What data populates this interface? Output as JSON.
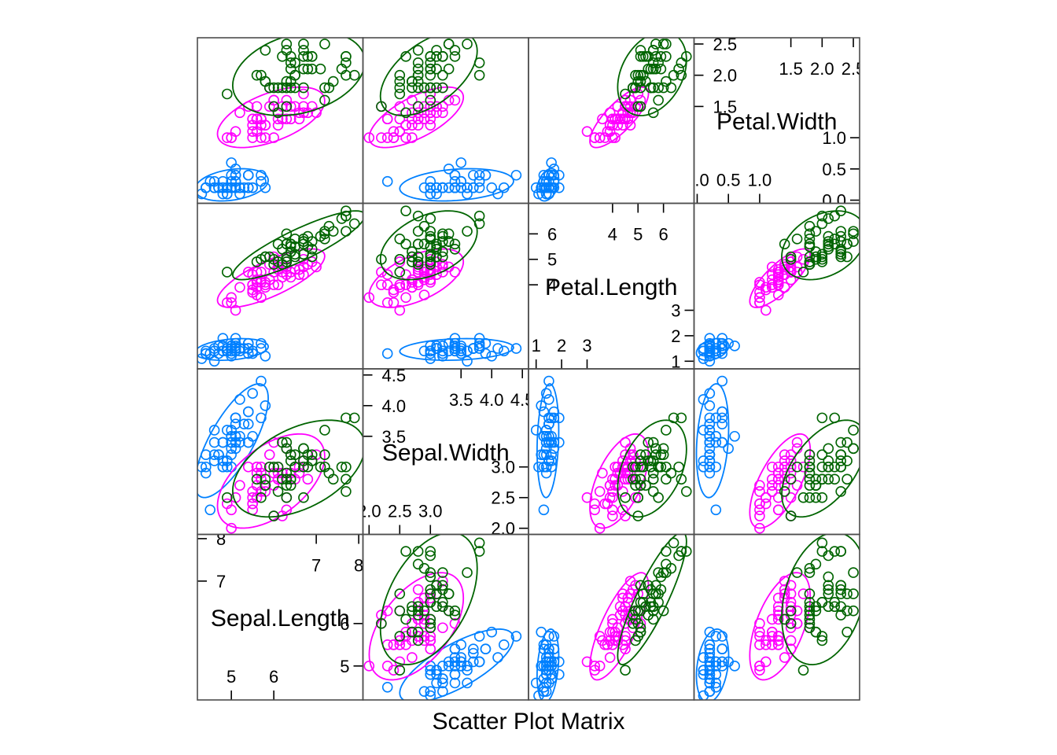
{
  "chart_data": {
    "type": "scatter",
    "title": "",
    "xlabel": "Scatter Plot Matrix",
    "ylabel": "",
    "variables": [
      "Sepal.Length",
      "Sepal.Width",
      "Petal.Length",
      "Petal.Width"
    ],
    "ranges": {
      "Sepal.Length": [
        4.2,
        8.1
      ],
      "Sepal.Width": [
        1.9,
        4.6
      ],
      "Petal.Length": [
        0.7,
        7.2
      ],
      "Petal.Width": [
        -0.05,
        2.6
      ]
    },
    "diagonal_ticks": {
      "Sepal.Length": {
        "low": [
          "5",
          "6"
        ],
        "high": [
          "7",
          "8"
        ]
      },
      "Sepal.Width": {
        "low": [
          "2.0",
          "2.5",
          "3.0"
        ],
        "high": [
          "3.5",
          "4.0",
          "4.5"
        ]
      },
      "Petal.Length": {
        "low": [
          "1",
          "2",
          "3"
        ],
        "high": [
          "4",
          "5",
          "6"
        ]
      },
      "Petal.Width": {
        "low": [
          "0.0",
          "0.5",
          "1.0"
        ],
        "high": [
          "1.5",
          "2.0",
          "2.5"
        ]
      }
    },
    "ellipses": true,
    "grid": false,
    "legend": "none",
    "series": [
      {
        "color": "#0080ff",
        "points": [
          [
            5.1,
            3.5,
            1.4,
            0.2
          ],
          [
            4.9,
            3.0,
            1.4,
            0.2
          ],
          [
            4.7,
            3.2,
            1.3,
            0.2
          ],
          [
            4.6,
            3.1,
            1.5,
            0.2
          ],
          [
            5.0,
            3.6,
            1.4,
            0.2
          ],
          [
            5.4,
            3.9,
            1.7,
            0.4
          ],
          [
            4.6,
            3.4,
            1.4,
            0.3
          ],
          [
            5.0,
            3.4,
            1.5,
            0.2
          ],
          [
            4.4,
            2.9,
            1.4,
            0.2
          ],
          [
            4.9,
            3.1,
            1.5,
            0.1
          ],
          [
            5.4,
            3.7,
            1.5,
            0.2
          ],
          [
            4.8,
            3.4,
            1.6,
            0.2
          ],
          [
            4.8,
            3.0,
            1.4,
            0.1
          ],
          [
            4.3,
            3.0,
            1.1,
            0.1
          ],
          [
            5.8,
            4.0,
            1.2,
            0.2
          ],
          [
            5.7,
            4.4,
            1.5,
            0.4
          ],
          [
            5.4,
            3.9,
            1.3,
            0.4
          ],
          [
            5.1,
            3.5,
            1.4,
            0.3
          ],
          [
            5.7,
            3.8,
            1.7,
            0.3
          ],
          [
            5.1,
            3.8,
            1.5,
            0.3
          ],
          [
            5.4,
            3.4,
            1.7,
            0.2
          ],
          [
            5.1,
            3.7,
            1.5,
            0.4
          ],
          [
            4.6,
            3.6,
            1.0,
            0.2
          ],
          [
            5.1,
            3.3,
            1.7,
            0.5
          ],
          [
            4.8,
            3.4,
            1.9,
            0.2
          ],
          [
            5.0,
            3.0,
            1.6,
            0.2
          ],
          [
            5.0,
            3.4,
            1.6,
            0.4
          ],
          [
            5.2,
            3.5,
            1.5,
            0.2
          ],
          [
            5.2,
            3.4,
            1.4,
            0.2
          ],
          [
            4.7,
            3.2,
            1.6,
            0.2
          ],
          [
            4.8,
            3.1,
            1.6,
            0.2
          ],
          [
            5.4,
            3.4,
            1.5,
            0.4
          ],
          [
            5.2,
            4.1,
            1.5,
            0.1
          ],
          [
            5.5,
            4.2,
            1.4,
            0.2
          ],
          [
            4.9,
            3.1,
            1.5,
            0.2
          ],
          [
            5.0,
            3.2,
            1.2,
            0.2
          ],
          [
            5.5,
            3.5,
            1.3,
            0.2
          ],
          [
            4.9,
            3.6,
            1.4,
            0.1
          ],
          [
            4.4,
            3.0,
            1.3,
            0.2
          ],
          [
            5.1,
            3.4,
            1.5,
            0.2
          ],
          [
            5.0,
            3.5,
            1.3,
            0.3
          ],
          [
            4.5,
            2.3,
            1.3,
            0.3
          ],
          [
            4.4,
            3.2,
            1.3,
            0.2
          ],
          [
            5.0,
            3.5,
            1.6,
            0.6
          ],
          [
            5.1,
            3.8,
            1.9,
            0.4
          ],
          [
            4.8,
            3.0,
            1.4,
            0.3
          ],
          [
            5.1,
            3.8,
            1.6,
            0.2
          ],
          [
            4.6,
            3.2,
            1.4,
            0.2
          ],
          [
            5.3,
            3.7,
            1.5,
            0.2
          ],
          [
            5.0,
            3.3,
            1.4,
            0.2
          ]
        ]
      },
      {
        "color": "#ff00ff",
        "points": [
          [
            7.0,
            3.2,
            4.7,
            1.4
          ],
          [
            6.4,
            3.2,
            4.5,
            1.5
          ],
          [
            6.9,
            3.1,
            4.9,
            1.5
          ],
          [
            5.5,
            2.3,
            4.0,
            1.3
          ],
          [
            6.5,
            2.8,
            4.6,
            1.5
          ],
          [
            5.7,
            2.8,
            4.5,
            1.3
          ],
          [
            6.3,
            3.3,
            4.7,
            1.6
          ],
          [
            4.9,
            2.4,
            3.3,
            1.0
          ],
          [
            6.6,
            2.9,
            4.6,
            1.3
          ],
          [
            5.2,
            2.7,
            3.9,
            1.4
          ],
          [
            5.0,
            2.0,
            3.5,
            1.0
          ],
          [
            5.9,
            3.0,
            4.2,
            1.5
          ],
          [
            6.0,
            2.2,
            4.0,
            1.0
          ],
          [
            6.1,
            2.9,
            4.7,
            1.4
          ],
          [
            5.6,
            2.9,
            3.6,
            1.3
          ],
          [
            6.7,
            3.1,
            4.4,
            1.4
          ],
          [
            5.6,
            3.0,
            4.5,
            1.5
          ],
          [
            5.8,
            2.7,
            4.1,
            1.0
          ],
          [
            6.2,
            2.2,
            4.5,
            1.5
          ],
          [
            5.6,
            2.5,
            3.9,
            1.1
          ],
          [
            5.9,
            3.2,
            4.8,
            1.8
          ],
          [
            6.1,
            2.8,
            4.0,
            1.3
          ],
          [
            6.3,
            2.5,
            4.9,
            1.5
          ],
          [
            6.1,
            2.8,
            4.7,
            1.2
          ],
          [
            6.4,
            2.9,
            4.3,
            1.3
          ],
          [
            6.6,
            3.0,
            4.4,
            1.4
          ],
          [
            6.8,
            2.8,
            4.8,
            1.4
          ],
          [
            6.7,
            3.0,
            5.0,
            1.7
          ],
          [
            6.0,
            2.9,
            4.5,
            1.5
          ],
          [
            5.7,
            2.6,
            3.5,
            1.0
          ],
          [
            5.5,
            2.4,
            3.8,
            1.1
          ],
          [
            5.5,
            2.4,
            3.7,
            1.0
          ],
          [
            5.8,
            2.7,
            3.9,
            1.2
          ],
          [
            6.0,
            2.7,
            5.1,
            1.6
          ],
          [
            5.4,
            3.0,
            4.5,
            1.5
          ],
          [
            6.0,
            3.4,
            4.5,
            1.6
          ],
          [
            6.7,
            3.1,
            4.7,
            1.5
          ],
          [
            6.3,
            2.3,
            4.4,
            1.3
          ],
          [
            5.6,
            3.0,
            4.1,
            1.3
          ],
          [
            5.5,
            2.5,
            4.0,
            1.3
          ],
          [
            5.5,
            2.6,
            4.4,
            1.2
          ],
          [
            6.1,
            3.0,
            4.6,
            1.4
          ],
          [
            5.8,
            2.6,
            4.0,
            1.2
          ],
          [
            5.0,
            2.3,
            3.3,
            1.0
          ],
          [
            5.6,
            2.7,
            4.2,
            1.3
          ],
          [
            5.7,
            3.0,
            4.2,
            1.2
          ],
          [
            5.7,
            2.9,
            4.2,
            1.3
          ],
          [
            6.2,
            2.9,
            4.3,
            1.3
          ],
          [
            5.1,
            2.5,
            3.0,
            1.1
          ],
          [
            5.7,
            2.8,
            4.1,
            1.3
          ]
        ]
      },
      {
        "color": "#006400",
        "points": [
          [
            6.3,
            3.3,
            6.0,
            2.5
          ],
          [
            5.8,
            2.7,
            5.1,
            1.9
          ],
          [
            7.1,
            3.0,
            5.9,
            2.1
          ],
          [
            6.3,
            2.9,
            5.6,
            1.8
          ],
          [
            6.5,
            3.0,
            5.8,
            2.2
          ],
          [
            7.6,
            3.0,
            6.6,
            2.1
          ],
          [
            4.9,
            2.5,
            4.5,
            1.7
          ],
          [
            7.3,
            2.9,
            6.3,
            1.8
          ],
          [
            6.7,
            2.5,
            5.8,
            1.8
          ],
          [
            7.2,
            3.6,
            6.1,
            2.5
          ],
          [
            6.5,
            3.2,
            5.1,
            2.0
          ],
          [
            6.4,
            2.7,
            5.3,
            1.9
          ],
          [
            6.8,
            3.0,
            5.5,
            2.1
          ],
          [
            5.7,
            2.5,
            5.0,
            2.0
          ],
          [
            5.8,
            2.8,
            5.1,
            2.4
          ],
          [
            6.4,
            3.2,
            5.3,
            2.3
          ],
          [
            6.5,
            3.0,
            5.5,
            1.8
          ],
          [
            7.7,
            3.8,
            6.7,
            2.2
          ],
          [
            7.7,
            2.6,
            6.9,
            2.3
          ],
          [
            6.0,
            2.2,
            5.0,
            1.5
          ],
          [
            6.9,
            3.2,
            5.7,
            2.3
          ],
          [
            5.6,
            2.8,
            4.9,
            2.0
          ],
          [
            7.7,
            2.8,
            6.7,
            2.0
          ],
          [
            6.3,
            2.7,
            4.9,
            1.8
          ],
          [
            6.7,
            3.3,
            5.7,
            2.1
          ],
          [
            7.2,
            3.2,
            6.0,
            1.8
          ],
          [
            6.2,
            2.8,
            4.8,
            1.8
          ],
          [
            6.1,
            3.0,
            4.9,
            1.8
          ],
          [
            6.4,
            2.8,
            5.6,
            2.1
          ],
          [
            7.2,
            3.0,
            5.8,
            1.6
          ],
          [
            7.4,
            2.8,
            6.1,
            1.9
          ],
          [
            7.9,
            3.8,
            6.4,
            2.0
          ],
          [
            6.4,
            2.8,
            5.6,
            2.2
          ],
          [
            6.3,
            2.8,
            5.1,
            1.5
          ],
          [
            6.1,
            2.6,
            5.6,
            1.4
          ],
          [
            7.7,
            3.0,
            6.1,
            2.3
          ],
          [
            6.3,
            3.4,
            5.6,
            2.4
          ],
          [
            6.4,
            3.1,
            5.5,
            1.8
          ],
          [
            6.0,
            3.0,
            4.8,
            1.8
          ],
          [
            6.9,
            3.1,
            5.4,
            2.1
          ],
          [
            6.7,
            3.1,
            5.6,
            2.4
          ],
          [
            6.9,
            3.1,
            5.1,
            2.3
          ],
          [
            5.8,
            2.7,
            5.1,
            1.9
          ],
          [
            6.8,
            3.2,
            5.9,
            2.3
          ],
          [
            6.7,
            3.3,
            5.7,
            2.5
          ],
          [
            6.7,
            3.0,
            5.2,
            2.3
          ],
          [
            6.3,
            2.5,
            5.0,
            1.9
          ],
          [
            6.5,
            3.0,
            5.2,
            2.0
          ],
          [
            6.2,
            3.4,
            5.4,
            2.3
          ],
          [
            5.9,
            3.0,
            5.1,
            1.8
          ]
        ]
      }
    ]
  }
}
